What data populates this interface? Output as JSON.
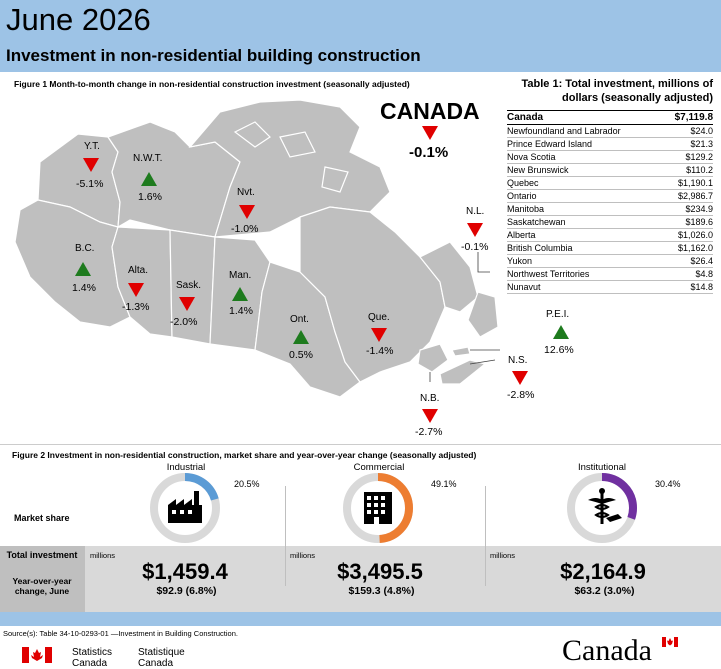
{
  "header": {
    "title": "June 2026",
    "subtitle": "Investment in non-residential building construction"
  },
  "figure1": {
    "caption": "Figure 1  Month-to-month change in non-residential construction investment (seasonally adjusted)",
    "canada": {
      "label": "CANADA",
      "change": "-0.1%",
      "direction": "down"
    },
    "provinces": [
      {
        "name": "Y.T.",
        "change": "-5.1%",
        "direction": "down"
      },
      {
        "name": "N.W.T.",
        "change": "1.6%",
        "direction": "up"
      },
      {
        "name": "Nvt.",
        "change": "-1.0%",
        "direction": "down"
      },
      {
        "name": "B.C.",
        "change": "1.4%",
        "direction": "up"
      },
      {
        "name": "Alta.",
        "change": "-1.3%",
        "direction": "down"
      },
      {
        "name": "Sask.",
        "change": "-2.0%",
        "direction": "down"
      },
      {
        "name": "Man.",
        "change": "1.4%",
        "direction": "up"
      },
      {
        "name": "Ont.",
        "change": "0.5%",
        "direction": "up"
      },
      {
        "name": "Que.",
        "change": "-1.4%",
        "direction": "down"
      },
      {
        "name": "N.L.",
        "change": "-0.1%",
        "direction": "down"
      },
      {
        "name": "P.E.I.",
        "change": "12.6%",
        "direction": "up"
      },
      {
        "name": "N.S.",
        "change": "-2.8%",
        "direction": "down"
      },
      {
        "name": "N.B.",
        "change": "-2.7%",
        "direction": "down"
      }
    ],
    "colors": {
      "down": "#e00000",
      "up": "#1e7b1e",
      "land": "#bfbfbf",
      "border": "#ffffff"
    }
  },
  "table1": {
    "title": "Table 1: Total investment, millions of dollars (seasonally adjusted)",
    "total": {
      "name": "Canada",
      "value": "$7,119.8"
    },
    "rows": [
      {
        "name": "Newfoundland and Labrador",
        "value": "$24.0"
      },
      {
        "name": "Prince Edward Island",
        "value": "$21.3"
      },
      {
        "name": "Nova Scotia",
        "value": "$129.2"
      },
      {
        "name": "New Brunswick",
        "value": "$110.2"
      },
      {
        "name": "Quebec",
        "value": "$1,190.1"
      },
      {
        "name": "Ontario",
        "value": "$2,986.7"
      },
      {
        "name": "Manitoba",
        "value": "$234.9"
      },
      {
        "name": "Saskatchewan",
        "value": "$189.6"
      },
      {
        "name": "Alberta",
        "value": "$1,026.0"
      },
      {
        "name": "British Columbia",
        "value": "$1,162.0"
      },
      {
        "name": "Yukon",
        "value": "$26.4"
      },
      {
        "name": "Northwest Territories",
        "value": "$4.8"
      },
      {
        "name": "Nunavut",
        "value": "$14.8"
      }
    ]
  },
  "figure2": {
    "caption": "Figure 2 Investment in non-residential construction, market share and year-over-year change (seasonally adjusted)",
    "market_share_label": "Market share",
    "total_label": "Total investment",
    "yoy_label": "Year-over-year change, June",
    "millions_label": "millions",
    "sectors": [
      {
        "name": "Industrial",
        "share": "20.5%",
        "share_value": 0.205,
        "color": "#5b9bd5",
        "total": "$1,459.4",
        "yoy": "$92.9 (6.8%)",
        "icon": "factory-icon"
      },
      {
        "name": "Commercial",
        "share": "49.1%",
        "share_value": 0.491,
        "color": "#ed7d31",
        "total": "$3,495.5",
        "yoy": "$159.3 (4.8%)",
        "icon": "office-building-icon"
      },
      {
        "name": "Institutional",
        "share": "30.4%",
        "share_value": 0.304,
        "color": "#7030a0",
        "total": "$2,164.9",
        "yoy": "$63.2 (3.0%)",
        "icon": "caduceus-graduation-icon"
      }
    ]
  },
  "footer": {
    "source": "Source(s): Table 34-10-0293-01 —Investment in Building Construction.",
    "sc_en_line1": "Statistics",
    "sc_en_line2": "Canada",
    "sc_fr_line1": "Statistique",
    "sc_fr_line2": "Canada",
    "wordmark": "Canada"
  }
}
